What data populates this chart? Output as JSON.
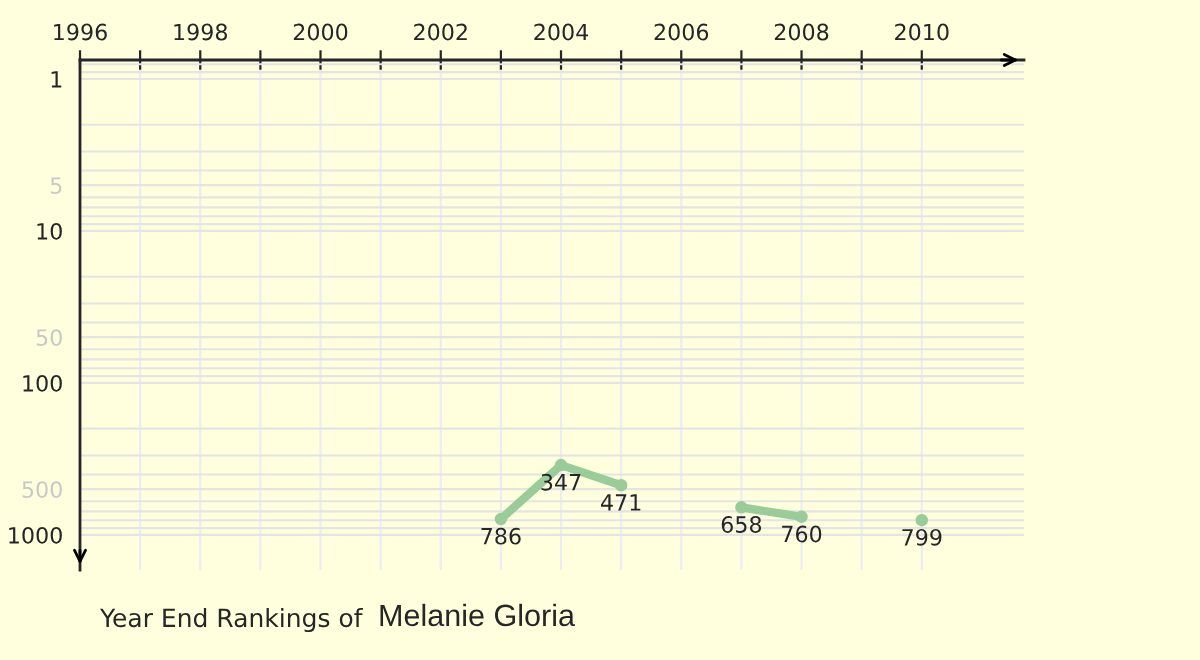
{
  "chart_data": {
    "type": "line",
    "title": "Year End Rankings of",
    "subtitle": "Melanie Gloria",
    "x": [
      2003,
      2004,
      2005,
      2006,
      2007,
      2008,
      2009,
      2010
    ],
    "series": [
      {
        "color": "#99cc99",
        "values": [
          786,
          347,
          471,
          null,
          658,
          760,
          null,
          799
        ]
      }
    ],
    "log": "y",
    "xlim": [
      1996,
      2011.7
    ],
    "ylim": [
      1700,
      0.75
    ],
    "xticks": [
      1996,
      {
        "value": 1997,
        "label": null
      },
      1998,
      {
        "value": 1999,
        "label": null
      },
      2000,
      {
        "value": 2001,
        "label": null
      },
      2002,
      {
        "value": 2003,
        "label": null
      },
      2004,
      {
        "value": 2005,
        "label": null
      },
      2006,
      {
        "value": 2007,
        "label": null
      },
      2008,
      {
        "value": 2009,
        "label": null
      },
      2010
    ],
    "yticks": [
      1,
      5,
      10,
      50,
      100,
      500,
      1000
    ],
    "grid": true,
    "marker": "circle",
    "data_labels": true,
    "legend": false
  }
}
